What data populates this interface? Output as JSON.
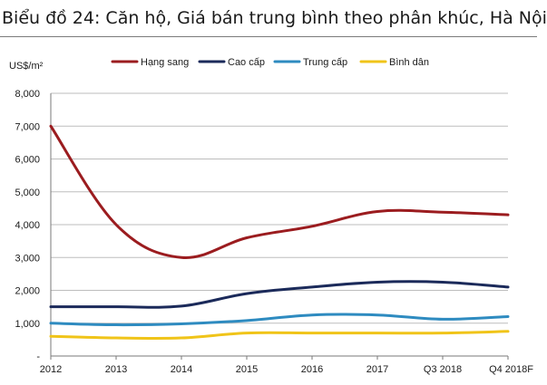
{
  "title": "Biểu đồ 24: Căn hộ, Giá bán trung bình theo phân khúc, Hà Nội",
  "chart_data": {
    "type": "line",
    "title": "Biểu đồ 24: Căn hộ, Giá bán trung bình theo phân khúc, Hà Nội",
    "ylabel": "US$/m²",
    "xlabel": "",
    "categories": [
      "2012",
      "2013",
      "2014",
      "2015",
      "2016",
      "2017",
      "Q3 2018",
      "Q4 2018F"
    ],
    "y_ticks": [
      "-",
      "1,000",
      "2,000",
      "3,000",
      "4,000",
      "5,000",
      "6,000",
      "7,000",
      "8,000"
    ],
    "ylim": [
      0,
      8000
    ],
    "grid": true,
    "legend_position": "top",
    "series": [
      {
        "name": "Hạng sang",
        "color": "#9b1c1f",
        "values": [
          7000,
          4000,
          3000,
          3600,
          3950,
          4400,
          4380,
          4300
        ]
      },
      {
        "name": "Cao cấp",
        "color": "#1b2a5a",
        "values": [
          1500,
          1500,
          1520,
          1900,
          2100,
          2250,
          2250,
          2100
        ]
      },
      {
        "name": "Trung cấp",
        "color": "#2e8bc0",
        "values": [
          1000,
          950,
          980,
          1080,
          1250,
          1250,
          1120,
          1200
        ]
      },
      {
        "name": "Bình dân",
        "color": "#f0c419",
        "values": [
          600,
          550,
          550,
          700,
          700,
          700,
          700,
          750
        ]
      }
    ]
  }
}
